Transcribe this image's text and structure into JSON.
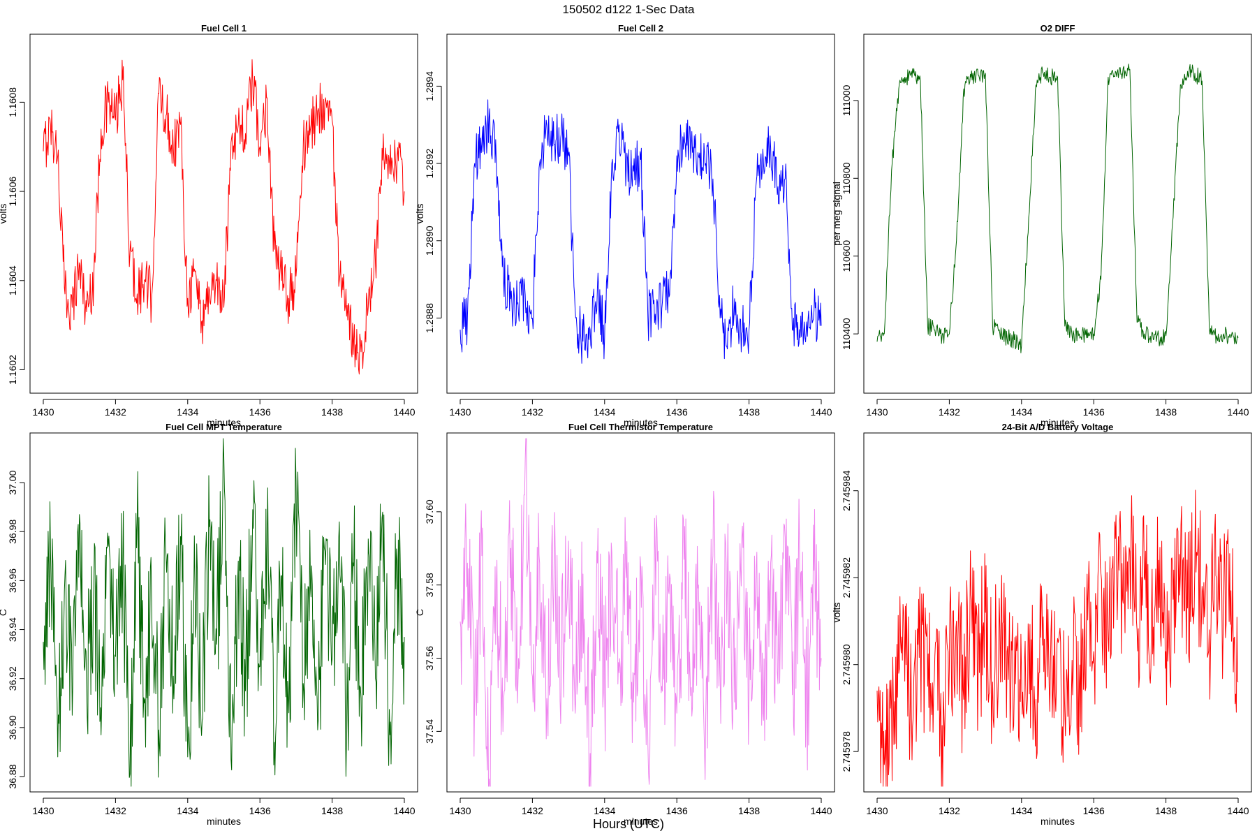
{
  "figure": {
    "title": "150502   d122   1-Sec Data",
    "xlabel": "Hours (UTC)"
  },
  "chart_data": [
    {
      "id": "fc1",
      "type": "line",
      "title": "Fuel Cell 1",
      "xlabel": "minutes",
      "ylabel": "volts",
      "color": "#ff0000",
      "xlim": [
        1430,
        1440
      ],
      "ylim": [
        1.16016,
        1.16094
      ],
      "xticks": [
        "1430",
        "1432",
        "1434",
        "1436",
        "1438",
        "1440"
      ],
      "xtick_values": [
        1430,
        1432,
        1434,
        1436,
        1438,
        1440
      ],
      "yticks": [
        "1.1602",
        "1.1604",
        "1.1606",
        "1.1608"
      ],
      "ytick_values": [
        1.1602,
        1.1604,
        1.1606,
        1.1608
      ],
      "series": [
        {
          "name": "Fuel Cell 1",
          "x": [
            1430.0,
            1430.2,
            1430.4,
            1430.6,
            1430.8,
            1431.0,
            1431.2,
            1431.4,
            1431.6,
            1431.8,
            1432.0,
            1432.2,
            1432.4,
            1432.6,
            1432.8,
            1433.0,
            1433.2,
            1433.4,
            1433.6,
            1433.8,
            1434.0,
            1434.2,
            1434.4,
            1434.6,
            1434.8,
            1435.0,
            1435.2,
            1435.4,
            1435.6,
            1435.8,
            1436.0,
            1436.2,
            1436.4,
            1436.6,
            1436.8,
            1437.0,
            1437.2,
            1437.4,
            1437.6,
            1437.8,
            1438.0,
            1438.2,
            1438.4,
            1438.6,
            1438.8,
            1439.0,
            1439.2,
            1439.4,
            1439.6,
            1439.8,
            1440.0
          ],
          "y": [
            1.16069,
            1.16075,
            1.16068,
            1.16037,
            1.16034,
            1.16044,
            1.16033,
            1.16041,
            1.16074,
            1.1608,
            1.16076,
            1.16085,
            1.16046,
            1.16037,
            1.1604,
            1.16036,
            1.16082,
            1.16077,
            1.1607,
            1.16075,
            1.16036,
            1.16042,
            1.16031,
            1.16038,
            1.1604,
            1.16034,
            1.16071,
            1.16075,
            1.16073,
            1.16085,
            1.1607,
            1.16081,
            1.16047,
            1.1604,
            1.16036,
            1.16041,
            1.1607,
            1.16074,
            1.16078,
            1.1608,
            1.16076,
            1.1604,
            1.16032,
            1.16027,
            1.16024,
            1.16034,
            1.16044,
            1.16067,
            1.16064,
            1.16068,
            1.1606
          ]
        }
      ]
    },
    {
      "id": "fc2",
      "type": "line",
      "title": "Fuel Cell 2",
      "xlabel": "minutes",
      "ylabel": "volts",
      "color": "#0000ff",
      "xlim": [
        1430,
        1440
      ],
      "ylim": [
        1.28862,
        1.28952
      ],
      "xticks": [
        "1430",
        "1432",
        "1434",
        "1436",
        "1438",
        "1440"
      ],
      "xtick_values": [
        1430,
        1432,
        1434,
        1436,
        1438,
        1440
      ],
      "yticks": [
        "1.2888",
        "1.2890",
        "1.2892",
        "1.2894"
      ],
      "ytick_values": [
        1.2888,
        1.289,
        1.2892,
        1.2894
      ],
      "series": [
        {
          "name": "Fuel Cell 2",
          "x": [
            1430.0,
            1430.2,
            1430.4,
            1430.6,
            1430.8,
            1431.0,
            1431.2,
            1431.4,
            1431.6,
            1431.8,
            1432.0,
            1432.2,
            1432.4,
            1432.6,
            1432.8,
            1433.0,
            1433.2,
            1433.4,
            1433.6,
            1433.8,
            1434.0,
            1434.2,
            1434.4,
            1434.6,
            1434.8,
            1435.0,
            1435.2,
            1435.4,
            1435.6,
            1435.8,
            1436.0,
            1436.2,
            1436.4,
            1436.6,
            1436.8,
            1437.0,
            1437.2,
            1437.4,
            1437.6,
            1437.8,
            1438.0,
            1438.2,
            1438.4,
            1438.6,
            1438.8,
            1439.0,
            1439.2,
            1439.4,
            1439.6,
            1439.8,
            1440.0
          ],
          "y": [
            1.28877,
            1.2888,
            1.2892,
            1.28925,
            1.28932,
            1.2892,
            1.2889,
            1.28885,
            1.28884,
            1.28886,
            1.2888,
            1.2892,
            1.2893,
            1.28925,
            1.28928,
            1.28922,
            1.2888,
            1.28874,
            1.28877,
            1.28888,
            1.28875,
            1.2892,
            1.2893,
            1.28919,
            1.28918,
            1.28921,
            1.2888,
            1.28881,
            1.28884,
            1.28886,
            1.28922,
            1.28928,
            1.28925,
            1.28922,
            1.2892,
            1.28916,
            1.2888,
            1.28872,
            1.28885,
            1.28876,
            1.28877,
            1.28915,
            1.2892,
            1.28924,
            1.28914,
            1.28916,
            1.28877,
            1.28877,
            1.28879,
            1.28882,
            1.28878
          ]
        }
      ]
    },
    {
      "id": "o2",
      "type": "line",
      "title": "O2 DIFF",
      "xlabel": "minutes",
      "ylabel": "per meg signal",
      "color": "#006400",
      "xlim": [
        1430,
        1440
      ],
      "ylim": [
        110262,
        111156
      ],
      "xticks": [
        "1430",
        "1432",
        "1434",
        "1436",
        "1438",
        "1440"
      ],
      "xtick_values": [
        1430,
        1432,
        1434,
        1436,
        1438,
        1440
      ],
      "yticks": [
        "110400",
        "110600",
        "110800",
        "111000"
      ],
      "ytick_values": [
        110400,
        110600,
        110800,
        111000
      ],
      "series": [
        {
          "name": "O2 DIFF",
          "x": [
            1430.0,
            1430.2,
            1430.4,
            1430.6,
            1430.8,
            1431.0,
            1431.2,
            1431.4,
            1431.6,
            1431.8,
            1432.0,
            1432.2,
            1432.4,
            1432.6,
            1432.8,
            1433.0,
            1433.2,
            1433.4,
            1433.6,
            1433.8,
            1434.0,
            1434.2,
            1434.4,
            1434.6,
            1434.8,
            1435.0,
            1435.2,
            1435.4,
            1435.6,
            1435.8,
            1436.0,
            1436.2,
            1436.4,
            1436.6,
            1436.8,
            1437.0,
            1437.2,
            1437.4,
            1437.6,
            1437.8,
            1438.0,
            1438.2,
            1438.4,
            1438.6,
            1438.8,
            1439.0,
            1439.2,
            1439.4,
            1439.6,
            1439.8,
            1440.0
          ],
          "y": [
            110380,
            110400,
            110820,
            111030,
            111060,
            111070,
            111050,
            110420,
            110410,
            110395,
            110400,
            110640,
            111030,
            111060,
            111065,
            111070,
            110420,
            110400,
            110390,
            110385,
            110370,
            110700,
            111040,
            111070,
            111060,
            111060,
            110420,
            110395,
            110400,
            110390,
            110400,
            110540,
            111060,
            111075,
            111070,
            111080,
            110430,
            110400,
            110395,
            110390,
            110395,
            110700,
            111040,
            111075,
            111070,
            111050,
            110420,
            110395,
            110400,
            110390,
            110390
          ]
        }
      ]
    },
    {
      "id": "mpt",
      "type": "line",
      "title": "Fuel Cell MPT Temperature",
      "xlabel": "minutes",
      "ylabel": "C",
      "color": "#006400",
      "xlim": [
        1430,
        1440
      ],
      "ylim": [
        36.876,
        37.018
      ],
      "xticks": [
        "1430",
        "1432",
        "1434",
        "1436",
        "1438",
        "1440"
      ],
      "xtick_values": [
        1430,
        1432,
        1434,
        1436,
        1438,
        1440
      ],
      "yticks": [
        "36.88",
        "36.90",
        "36.92",
        "36.94",
        "36.96",
        "36.98",
        "37.00"
      ],
      "ytick_values": [
        36.88,
        36.9,
        36.92,
        36.94,
        36.96,
        36.98,
        37.0
      ],
      "series": [
        {
          "name": "Fuel Cell MPT Temperature",
          "x": [
            1430.0,
            1430.2,
            1430.4,
            1430.6,
            1430.8,
            1431.0,
            1431.2,
            1431.4,
            1431.6,
            1431.8,
            1432.0,
            1432.2,
            1432.4,
            1432.6,
            1432.8,
            1433.0,
            1433.2,
            1433.4,
            1433.6,
            1433.8,
            1434.0,
            1434.2,
            1434.4,
            1434.6,
            1434.8,
            1435.0,
            1435.2,
            1435.4,
            1435.6,
            1435.8,
            1436.0,
            1436.2,
            1436.4,
            1436.6,
            1436.8,
            1437.0,
            1437.2,
            1437.4,
            1437.6,
            1437.8,
            1438.0,
            1438.2,
            1438.4,
            1438.6,
            1438.8,
            1439.0,
            1439.2,
            1439.4,
            1439.6,
            1439.8,
            1440.0
          ],
          "y": [
            36.935,
            36.972,
            36.888,
            36.962,
            36.905,
            36.987,
            36.918,
            36.958,
            36.897,
            36.974,
            36.929,
            36.965,
            36.881,
            36.984,
            36.91,
            36.952,
            36.899,
            36.97,
            36.921,
            36.978,
            36.888,
            36.961,
            36.903,
            36.982,
            36.934,
            37.011,
            36.887,
            36.968,
            36.915,
            36.989,
            36.925,
            36.976,
            36.894,
            36.962,
            36.906,
            37.001,
            36.918,
            36.957,
            36.899,
            36.972,
            36.928,
            36.984,
            36.897,
            36.966,
            36.912,
            36.977,
            36.92,
            36.988,
            36.897,
            36.968,
            36.937
          ]
        }
      ]
    },
    {
      "id": "therm",
      "type": "line",
      "title": "Fuel Cell Thermistor Temperature",
      "xlabel": "minutes",
      "ylabel": "C",
      "color": "#ee82ee",
      "xlim": [
        1430,
        1440
      ],
      "ylim": [
        37.525,
        37.62
      ],
      "xticks": [
        "1430",
        "1432",
        "1434",
        "1436",
        "1438",
        "1440"
      ],
      "xtick_values": [
        1430,
        1432,
        1434,
        1436,
        1438,
        1440
      ],
      "yticks": [
        "37.54",
        "37.56",
        "37.58",
        "37.60"
      ],
      "ytick_values": [
        37.54,
        37.56,
        37.58,
        37.6
      ],
      "series": [
        {
          "name": "Fuel Cell Thermistor Temperature",
          "x": [
            1430.0,
            1430.2,
            1430.4,
            1430.6,
            1430.8,
            1431.0,
            1431.2,
            1431.4,
            1431.6,
            1431.8,
            1432.0,
            1432.2,
            1432.4,
            1432.6,
            1432.8,
            1433.0,
            1433.2,
            1433.4,
            1433.6,
            1433.8,
            1434.0,
            1434.2,
            1434.4,
            1434.6,
            1434.8,
            1435.0,
            1435.2,
            1435.4,
            1435.6,
            1435.8,
            1436.0,
            1436.2,
            1436.4,
            1436.6,
            1436.8,
            1437.0,
            1437.2,
            1437.4,
            1437.6,
            1437.8,
            1438.0,
            1438.2,
            1438.4,
            1438.6,
            1438.8,
            1439.0,
            1439.2,
            1439.4,
            1439.6,
            1439.8,
            1440.0
          ],
          "y": [
            37.57,
            37.586,
            37.551,
            37.588,
            37.527,
            37.58,
            37.548,
            37.59,
            37.553,
            37.614,
            37.555,
            37.586,
            37.549,
            37.585,
            37.557,
            37.592,
            37.548,
            37.583,
            37.534,
            37.586,
            37.552,
            37.589,
            37.556,
            37.582,
            37.548,
            37.585,
            37.536,
            37.59,
            37.551,
            37.583,
            37.545,
            37.587,
            37.552,
            37.58,
            37.544,
            37.588,
            37.555,
            37.582,
            37.548,
            37.593,
            37.55,
            37.585,
            37.543,
            37.586,
            37.553,
            37.593,
            37.55,
            37.588,
            37.545,
            37.584,
            37.56
          ]
        }
      ]
    },
    {
      "id": "batt",
      "type": "line",
      "title": "24-Bit A/D Battery Voltage",
      "xlabel": "minutes",
      "ylabel": "volts",
      "color": "#ff0000",
      "xlim": [
        1430,
        1440
      ],
      "ylim": [
        2.7459772,
        2.7459852
      ],
      "xticks": [
        "1430",
        "1432",
        "1434",
        "1436",
        "1438",
        "1440"
      ],
      "xtick_values": [
        1430,
        1432,
        1434,
        1436,
        1438,
        1440
      ],
      "yticks": [
        "2.745978",
        "2.745980",
        "2.745982",
        "2.745984"
      ],
      "ytick_values": [
        2.745978,
        2.74598,
        2.745982,
        2.745984
      ],
      "series": [
        {
          "name": "24-Bit A/D Battery Voltage",
          "x": [
            1430.0,
            1430.2,
            1430.4,
            1430.6,
            1430.8,
            1431.0,
            1431.2,
            1431.4,
            1431.6,
            1431.8,
            1432.0,
            1432.2,
            1432.4,
            1432.6,
            1432.8,
            1433.0,
            1433.2,
            1433.4,
            1433.6,
            1433.8,
            1434.0,
            1434.2,
            1434.4,
            1434.6,
            1434.8,
            1435.0,
            1435.2,
            1435.4,
            1435.6,
            1435.8,
            1436.0,
            1436.2,
            1436.4,
            1436.6,
            1436.8,
            1437.0,
            1437.2,
            1437.4,
            1437.6,
            1437.8,
            1438.0,
            1438.2,
            1438.4,
            1438.6,
            1438.8,
            1439.0,
            1439.2,
            1439.4,
            1439.6,
            1439.8,
            1440.0
          ],
          "y": [
            2.7459794,
            2.7459777,
            2.745979,
            2.7459798,
            2.74598,
            2.7459788,
            2.7459806,
            2.7459795,
            2.7459802,
            2.7459786,
            2.7459799,
            2.745981,
            2.7459792,
            2.7459816,
            2.74598,
            2.7459812,
            2.7459796,
            2.7459808,
            2.7459803,
            2.7459795,
            2.7459798,
            2.7459806,
            2.7459792,
            2.7459811,
            2.74598,
            2.7459806,
            2.7459789,
            2.7459801,
            2.7459795,
            2.7459812,
            2.7459803,
            2.7459821,
            2.7459806,
            2.7459829,
            2.7459815,
            2.7459826,
            2.7459808,
            2.745982,
            2.7459811,
            2.7459824,
            2.7459803,
            2.7459815,
            2.7459821,
            2.7459813,
            2.7459823,
            2.7459818,
            2.7459808,
            2.745982,
            2.7459813,
            2.7459817,
            2.7459796
          ]
        }
      ]
    }
  ]
}
